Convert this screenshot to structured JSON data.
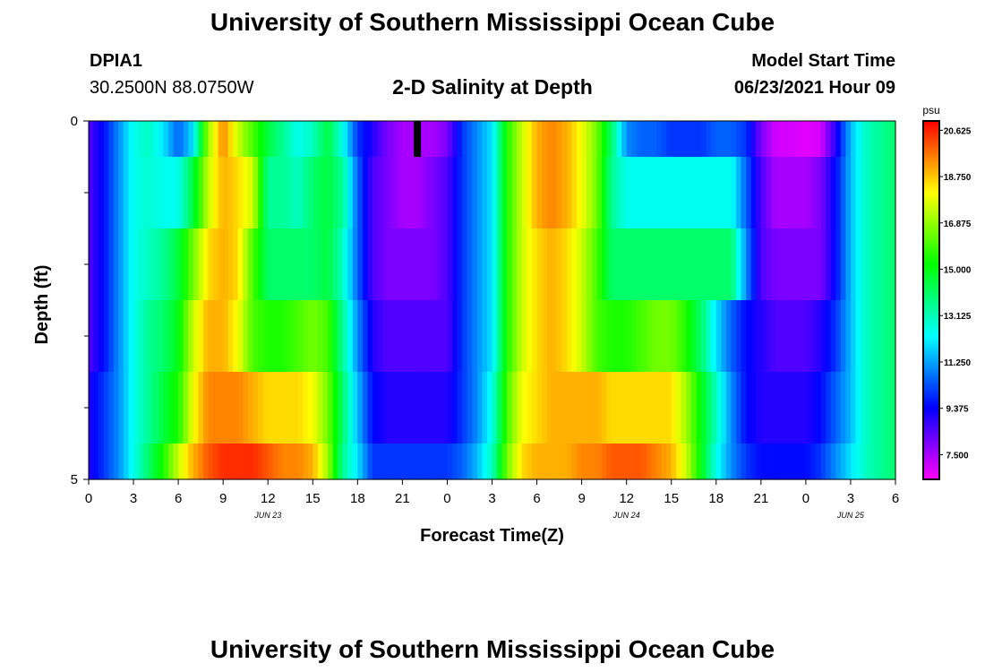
{
  "header": {
    "title": "University of Southern Mississippi Ocean Cube",
    "station": "DPIA1",
    "location": "30.2500N  88.0750W",
    "subtitle": "2-D Salinity at Depth",
    "model_label": "Model Start Time",
    "model_time": "06/23/2021 Hour 09"
  },
  "footer": {
    "title": "University of Southern Mississippi Ocean Cube"
  },
  "chart_data": {
    "type": "heatmap",
    "title": "2-D Salinity at Depth",
    "xlabel": "Forecast Time(Z)",
    "ylabel": "Depth (ft)",
    "x_range": [
      0,
      54
    ],
    "y_range": [
      0,
      5
    ],
    "x_ticks": [
      0,
      3,
      6,
      9,
      12,
      15,
      18,
      21,
      24,
      27,
      30,
      33,
      36,
      39,
      42,
      45,
      48,
      51,
      54
    ],
    "x_tick_labels": [
      "0",
      "3",
      "6",
      "9",
      "12",
      "15",
      "18",
      "21",
      "0",
      "3",
      "6",
      "9",
      "12",
      "15",
      "18",
      "21",
      "0",
      "3",
      "6"
    ],
    "y_tick_labels": [
      {
        "value": 0,
        "label": "0"
      },
      {
        "value": 5,
        "label": "5"
      }
    ],
    "y_minor_ticks": [
      1,
      2,
      3,
      4
    ],
    "date_labels": [
      {
        "hour": 12,
        "label": "JUN 23"
      },
      {
        "hour": 36,
        "label": "JUN 24"
      },
      {
        "hour": 51,
        "label": "JUN 25"
      }
    ],
    "colorbar": {
      "unit": "psu",
      "min": 6.5,
      "max": 21.0,
      "tick_values": [
        20.625,
        18.75,
        16.875,
        15.0,
        13.125,
        11.25,
        9.375,
        7.5
      ],
      "tick_labels": [
        "20.625",
        "18.750",
        "16.875",
        "15.000",
        "13.125",
        "11.250",
        "9.375",
        "7.500"
      ]
    },
    "marker": {
      "hour": 22.0,
      "depth_from": 0,
      "depth_to": 0.5
    },
    "depth_rows": [
      0,
      0.5,
      1.5,
      2.5,
      3.5,
      4.5,
      5
    ],
    "hour_knots": [
      0,
      1,
      2,
      3,
      4,
      5,
      6,
      7,
      8,
      9,
      10,
      11,
      12,
      13,
      14,
      15,
      16,
      17,
      18,
      19,
      20,
      21,
      22,
      23,
      24,
      25,
      26,
      27,
      28,
      29,
      30,
      31,
      32,
      33,
      34,
      35,
      36,
      37,
      38,
      39,
      40,
      41,
      42,
      43,
      44,
      45,
      46,
      47,
      48,
      49,
      50,
      51,
      52,
      53,
      54
    ],
    "salinity_rows": [
      [
        8.5,
        9.5,
        11.0,
        12.5,
        13.0,
        12.0,
        10.5,
        12.0,
        17.0,
        19.5,
        17.5,
        16.0,
        14.5,
        13.5,
        12.5,
        13.0,
        14.5,
        12.5,
        10.0,
        9.0,
        8.0,
        7.5,
        7.5,
        7.5,
        8.0,
        10.0,
        11.0,
        12.0,
        15.5,
        17.5,
        19.0,
        19.5,
        19.0,
        18.0,
        16.5,
        14.0,
        11.0,
        10.5,
        10.5,
        10.0,
        10.0,
        10.0,
        10.5,
        10.5,
        10.0,
        8.0,
        7.0,
        7.0,
        6.8,
        7.0,
        9.0,
        11.5,
        13.0,
        13.5,
        14.0
      ],
      [
        8.5,
        9.5,
        11.0,
        12.5,
        12.8,
        12.5,
        12.5,
        14.5,
        17.5,
        19.0,
        18.5,
        17.5,
        13.5,
        13.5,
        13.0,
        14.0,
        14.5,
        13.5,
        10.5,
        8.5,
        8.0,
        7.5,
        7.5,
        8.0,
        8.5,
        10.0,
        11.0,
        12.0,
        15.5,
        17.5,
        19.0,
        19.5,
        19.0,
        18.0,
        16.5,
        13.5,
        12.5,
        12.5,
        12.5,
        12.5,
        12.5,
        12.5,
        12.5,
        12.5,
        10.5,
        8.5,
        7.5,
        7.5,
        7.5,
        8.0,
        9.5,
        11.5,
        13.0,
        13.5,
        14.0
      ],
      [
        8.5,
        9.5,
        11.0,
        12.5,
        13.0,
        13.5,
        14.5,
        16.5,
        18.5,
        19.0,
        18.5,
        16.0,
        14.0,
        14.0,
        14.0,
        14.0,
        14.5,
        13.0,
        10.5,
        8.5,
        8.0,
        8.0,
        8.0,
        8.0,
        8.5,
        10.0,
        11.0,
        12.0,
        15.5,
        17.5,
        18.5,
        19.0,
        18.5,
        17.5,
        16.0,
        14.0,
        14.0,
        14.0,
        14.0,
        14.0,
        14.0,
        14.0,
        14.0,
        14.0,
        11.0,
        8.5,
        8.0,
        8.0,
        8.0,
        8.0,
        9.5,
        11.5,
        13.0,
        13.5,
        14.0
      ],
      [
        8.5,
        9.5,
        11.0,
        12.5,
        13.5,
        14.0,
        15.0,
        17.5,
        19.0,
        19.0,
        18.0,
        16.0,
        15.5,
        15.5,
        16.0,
        16.5,
        16.0,
        13.5,
        11.0,
        9.0,
        8.5,
        8.5,
        8.5,
        8.5,
        8.5,
        10.0,
        11.0,
        12.0,
        15.5,
        17.5,
        18.5,
        19.0,
        18.5,
        17.5,
        16.0,
        15.5,
        15.5,
        16.0,
        16.5,
        16.5,
        15.5,
        14.0,
        12.0,
        10.5,
        9.5,
        9.0,
        8.5,
        8.5,
        8.5,
        9.0,
        10.0,
        11.5,
        13.0,
        13.5,
        14.0
      ],
      [
        9.0,
        10.0,
        11.0,
        12.5,
        13.5,
        14.5,
        15.5,
        18.0,
        19.5,
        19.5,
        19.5,
        19.0,
        18.5,
        18.5,
        18.5,
        18.0,
        16.5,
        14.0,
        11.5,
        9.5,
        9.0,
        9.0,
        9.0,
        9.0,
        9.0,
        10.0,
        11.0,
        12.5,
        16.0,
        18.0,
        18.5,
        19.0,
        19.0,
        19.0,
        19.0,
        18.5,
        18.5,
        18.5,
        18.5,
        18.5,
        17.0,
        15.0,
        13.0,
        11.0,
        9.5,
        9.0,
        9.0,
        9.0,
        9.0,
        9.5,
        10.5,
        11.5,
        13.0,
        13.5,
        14.0
      ],
      [
        9.0,
        10.0,
        11.0,
        12.5,
        14.0,
        15.5,
        17.5,
        19.0,
        20.0,
        20.5,
        20.5,
        20.5,
        20.0,
        19.5,
        19.5,
        19.0,
        17.0,
        13.5,
        12.0,
        10.0,
        10.0,
        10.0,
        10.0,
        10.0,
        10.0,
        10.5,
        11.5,
        13.0,
        16.5,
        18.5,
        19.0,
        19.0,
        19.0,
        19.5,
        19.5,
        20.0,
        20.0,
        20.0,
        19.5,
        19.0,
        17.5,
        15.0,
        12.5,
        11.0,
        10.0,
        9.5,
        9.5,
        9.5,
        9.5,
        10.0,
        11.0,
        12.0,
        13.0,
        13.5,
        14.0
      ]
    ]
  }
}
